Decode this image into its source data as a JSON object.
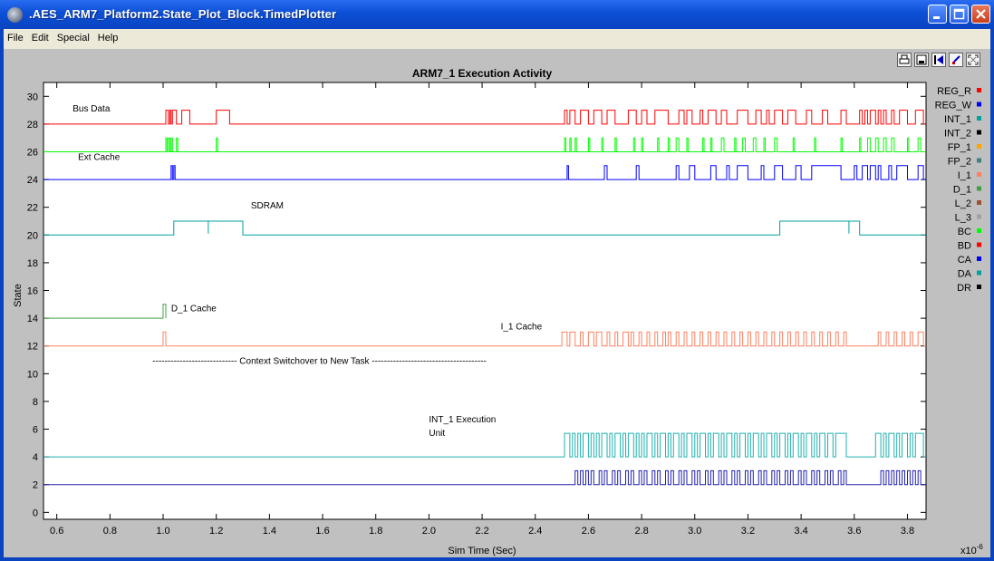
{
  "window": {
    "title": ".AES_ARM7_Platform2.State_Plot_Block.TimedPlotter"
  },
  "menu": [
    "File",
    "Edit",
    "Special",
    "Help"
  ],
  "toolbar": [
    "print-icon",
    "save-icon",
    "rewind-icon",
    "marker-icon",
    "fit-icon"
  ],
  "chart_data": {
    "type": "line",
    "title": "ARM7_1 Execution Activity",
    "xlabel": "Sim Time (Sec)",
    "ylabel": "State",
    "x_scale_label": "x10",
    "x_scale_exp": "-6",
    "xlim": [
      0.55,
      3.87
    ],
    "ylim": [
      -0.5,
      31
    ],
    "xticks": [
      "0.6",
      "0.8",
      "1.0",
      "1.2",
      "1.4",
      "1.6",
      "1.8",
      "2.0",
      "2.2",
      "2.4",
      "2.6",
      "2.8",
      "3.0",
      "3.2",
      "3.4",
      "3.6",
      "3.8"
    ],
    "yticks": [
      "0",
      "2",
      "4",
      "6",
      "8",
      "10",
      "12",
      "14",
      "16",
      "18",
      "20",
      "22",
      "24",
      "26",
      "28",
      "30"
    ],
    "legend": [
      {
        "name": "REG_R",
        "color": "#ff0000"
      },
      {
        "name": "REG_W",
        "color": "#0000ff"
      },
      {
        "name": "INT_1",
        "color": "#00a0a0"
      },
      {
        "name": "INT_2",
        "color": "#000000"
      },
      {
        "name": "FP_1",
        "color": "#ffa500"
      },
      {
        "name": "FP_2",
        "color": "#408080"
      },
      {
        "name": "I_1",
        "color": "#ff8060"
      },
      {
        "name": "D_1",
        "color": "#40a040"
      },
      {
        "name": "L_2",
        "color": "#a05030"
      },
      {
        "name": "L_3",
        "color": "#a0a0a0"
      },
      {
        "name": "BC",
        "color": "#00ff00"
      },
      {
        "name": "BD",
        "color": "#ff0000"
      },
      {
        "name": "CA",
        "color": "#0000ff"
      },
      {
        "name": "DA",
        "color": "#00a0a0"
      },
      {
        "name": "DR",
        "color": "#000000"
      }
    ],
    "annotations": [
      {
        "text": "Bus Data",
        "x": 0.66,
        "y": 28.9
      },
      {
        "text": "Ext Cache",
        "x": 0.68,
        "y": 25.4
      },
      {
        "text": "SDRAM",
        "x": 1.33,
        "y": 21.9
      },
      {
        "text": "D_1 Cache",
        "x": 1.03,
        "y": 14.5
      },
      {
        "text": "I_1 Cache",
        "x": 2.27,
        "y": 13.2
      },
      {
        "text": "---------------------------- Context Switchover to New Task --------------------------------------",
        "x": 0.96,
        "y": 10.7
      },
      {
        "text": "INT_1 Execution",
        "x": 2.0,
        "y": 6.5
      },
      {
        "text": "Unit",
        "x": 2.0,
        "y": 5.5
      }
    ],
    "series": [
      {
        "name": "BD",
        "color": "#ff0000",
        "base": 28,
        "amp": 1,
        "pulses": [
          [
            1.01,
            1.02
          ],
          [
            1.025,
            1.03
          ],
          [
            1.035,
            1.05
          ],
          [
            1.07,
            1.1
          ],
          [
            1.2,
            1.25
          ],
          [
            2.51,
            2.52
          ],
          [
            2.53,
            2.55
          ],
          [
            2.57,
            2.6
          ],
          [
            2.62,
            2.65
          ],
          [
            2.67,
            2.7
          ],
          [
            2.75,
            2.78
          ],
          [
            2.8,
            2.82
          ],
          [
            2.85,
            2.9
          ],
          [
            2.94,
            2.96
          ],
          [
            2.97,
            2.99
          ],
          [
            3.02,
            3.03
          ],
          [
            3.05,
            3.08
          ],
          [
            3.1,
            3.12
          ],
          [
            3.16,
            3.2
          ],
          [
            3.23,
            3.25
          ],
          [
            3.27,
            3.28
          ],
          [
            3.3,
            3.33
          ],
          [
            3.35,
            3.38
          ],
          [
            3.42,
            3.44
          ],
          [
            3.48,
            3.5
          ],
          [
            3.55,
            3.57
          ],
          [
            3.62,
            3.63
          ],
          [
            3.64,
            3.65
          ],
          [
            3.66,
            3.68
          ],
          [
            3.69,
            3.7
          ],
          [
            3.71,
            3.72
          ],
          [
            3.74,
            3.75
          ],
          [
            3.77,
            3.8
          ],
          [
            3.83,
            3.86
          ]
        ]
      },
      {
        "name": "BC",
        "color": "#00ff00",
        "base": 26,
        "amp": 1,
        "pulses": [
          [
            1.01,
            1.015
          ],
          [
            1.02,
            1.025
          ],
          [
            1.03,
            1.035
          ],
          [
            1.05,
            1.055
          ],
          [
            1.2,
            1.205
          ],
          [
            2.51,
            2.515
          ],
          [
            2.53,
            2.535
          ],
          [
            2.55,
            2.555
          ],
          [
            2.6,
            2.605
          ],
          [
            2.65,
            2.655
          ],
          [
            2.7,
            2.705
          ],
          [
            2.77,
            2.775
          ],
          [
            2.8,
            2.805
          ],
          [
            2.86,
            2.865
          ],
          [
            2.9,
            2.905
          ],
          [
            2.93,
            2.94
          ],
          [
            2.97,
            2.975
          ],
          [
            3.03,
            3.035
          ],
          [
            3.06,
            3.065
          ],
          [
            3.1,
            3.11
          ],
          [
            3.15,
            3.155
          ],
          [
            3.18,
            3.19
          ],
          [
            3.22,
            3.23
          ],
          [
            3.26,
            3.265
          ],
          [
            3.3,
            3.31
          ],
          [
            3.37,
            3.375
          ],
          [
            3.45,
            3.455
          ],
          [
            3.55,
            3.555
          ],
          [
            3.62,
            3.625
          ],
          [
            3.65,
            3.66
          ],
          [
            3.68,
            3.69
          ],
          [
            3.71,
            3.72
          ],
          [
            3.74,
            3.75
          ],
          [
            3.8,
            3.805
          ],
          [
            3.84,
            3.85
          ]
        ]
      },
      {
        "name": "CA",
        "color": "#0000ff",
        "base": 24,
        "amp": 1,
        "pulses": [
          [
            1.03,
            1.035
          ],
          [
            1.04,
            1.045
          ],
          [
            2.52,
            2.525
          ],
          [
            2.66,
            2.67
          ],
          [
            2.78,
            2.79
          ],
          [
            2.93,
            2.94
          ],
          [
            2.98,
            3.0
          ],
          [
            3.06,
            3.08
          ],
          [
            3.12,
            3.13
          ],
          [
            3.16,
            3.2
          ],
          [
            3.25,
            3.26
          ],
          [
            3.3,
            3.33
          ],
          [
            3.38,
            3.4
          ],
          [
            3.44,
            3.55
          ],
          [
            3.6,
            3.61
          ],
          [
            3.63,
            3.65
          ],
          [
            3.66,
            3.68
          ],
          [
            3.69,
            3.7
          ],
          [
            3.73,
            3.74
          ],
          [
            3.76,
            3.8
          ],
          [
            3.84,
            3.86
          ]
        ]
      },
      {
        "name": "DA",
        "color": "#00a0a0",
        "base": 20,
        "amp": 1,
        "pulses": [
          [
            1.04,
            1.3
          ],
          [
            3.32,
            3.62
          ]
        ],
        "spikes": [
          1.17,
          3.58
        ]
      },
      {
        "name": "D_1",
        "color": "#40a040",
        "base": 14,
        "amp": 1,
        "start": 0.55,
        "end": 1.01,
        "pulses": [
          [
            1.0,
            1.01
          ]
        ]
      },
      {
        "name": "I_1",
        "color": "#ff8060",
        "base": 12,
        "amp": 1,
        "pulses": [
          [
            1.0,
            1.01
          ],
          [
            2.5,
            2.52
          ],
          [
            2.53,
            2.55
          ],
          [
            2.57,
            2.58
          ],
          [
            2.6,
            2.62
          ],
          [
            2.63,
            2.65
          ],
          [
            2.67,
            2.68
          ],
          [
            2.7,
            2.71
          ],
          [
            2.73,
            2.75
          ],
          [
            2.76,
            2.77
          ],
          [
            2.79,
            2.8
          ],
          [
            2.82,
            2.83
          ],
          [
            2.85,
            2.86
          ],
          [
            2.88,
            2.89
          ],
          [
            2.9,
            2.91
          ],
          [
            2.93,
            2.94
          ],
          [
            2.96,
            2.97
          ],
          [
            2.99,
            3.0
          ],
          [
            3.02,
            3.03
          ],
          [
            3.05,
            3.06
          ],
          [
            3.08,
            3.09
          ],
          [
            3.11,
            3.12
          ],
          [
            3.14,
            3.15
          ],
          [
            3.17,
            3.18
          ],
          [
            3.2,
            3.21
          ],
          [
            3.23,
            3.24
          ],
          [
            3.26,
            3.27
          ],
          [
            3.29,
            3.3
          ],
          [
            3.32,
            3.33
          ],
          [
            3.35,
            3.36
          ],
          [
            3.38,
            3.39
          ],
          [
            3.41,
            3.42
          ],
          [
            3.44,
            3.45
          ],
          [
            3.47,
            3.48
          ],
          [
            3.5,
            3.51
          ],
          [
            3.53,
            3.54
          ],
          [
            3.56,
            3.57
          ],
          [
            3.69,
            3.7
          ],
          [
            3.72,
            3.73
          ],
          [
            3.75,
            3.76
          ],
          [
            3.78,
            3.79
          ],
          [
            3.81,
            3.82
          ],
          [
            3.84,
            3.86
          ]
        ]
      },
      {
        "name": "INT_1",
        "color": "#20b0b0",
        "base": 4,
        "amp": 1.7,
        "pulses": [
          [
            2.51,
            2.53
          ],
          [
            2.54,
            2.55
          ],
          [
            2.56,
            2.57
          ],
          [
            2.58,
            2.6
          ],
          [
            2.61,
            2.62
          ],
          [
            2.63,
            2.64
          ],
          [
            2.65,
            2.67
          ],
          [
            2.68,
            2.69
          ],
          [
            2.7,
            2.72
          ],
          [
            2.73,
            2.74
          ],
          [
            2.75,
            2.77
          ],
          [
            2.78,
            2.79
          ],
          [
            2.8,
            2.81
          ],
          [
            2.82,
            2.84
          ],
          [
            2.85,
            2.86
          ],
          [
            2.87,
            2.89
          ],
          [
            2.9,
            2.91
          ],
          [
            2.92,
            2.94
          ],
          [
            2.95,
            2.96
          ],
          [
            2.97,
            2.99
          ],
          [
            3.0,
            3.01
          ],
          [
            3.02,
            3.04
          ],
          [
            3.05,
            3.06
          ],
          [
            3.07,
            3.09
          ],
          [
            3.1,
            3.11
          ],
          [
            3.12,
            3.14
          ],
          [
            3.15,
            3.16
          ],
          [
            3.17,
            3.19
          ],
          [
            3.2,
            3.21
          ],
          [
            3.22,
            3.24
          ],
          [
            3.25,
            3.26
          ],
          [
            3.27,
            3.29
          ],
          [
            3.3,
            3.31
          ],
          [
            3.32,
            3.34
          ],
          [
            3.35,
            3.36
          ],
          [
            3.37,
            3.39
          ],
          [
            3.4,
            3.41
          ],
          [
            3.42,
            3.44
          ],
          [
            3.45,
            3.46
          ],
          [
            3.47,
            3.49
          ],
          [
            3.5,
            3.52
          ],
          [
            3.53,
            3.57
          ],
          [
            3.68,
            3.7
          ],
          [
            3.71,
            3.72
          ],
          [
            3.73,
            3.75
          ],
          [
            3.76,
            3.77
          ],
          [
            3.78,
            3.8
          ],
          [
            3.81,
            3.82
          ],
          [
            3.83,
            3.86
          ]
        ]
      },
      {
        "name": "INT_2",
        "color": "#2020b0",
        "base": 2,
        "amp": 1,
        "pulses": [
          [
            2.55,
            2.56
          ],
          [
            2.57,
            2.58
          ],
          [
            2.59,
            2.6
          ],
          [
            2.61,
            2.62
          ],
          [
            2.64,
            2.65
          ],
          [
            2.66,
            2.67
          ],
          [
            2.69,
            2.7
          ],
          [
            2.71,
            2.72
          ],
          [
            2.74,
            2.75
          ],
          [
            2.76,
            2.77
          ],
          [
            2.79,
            2.8
          ],
          [
            2.81,
            2.82
          ],
          [
            2.84,
            2.85
          ],
          [
            2.86,
            2.87
          ],
          [
            2.89,
            2.9
          ],
          [
            2.91,
            2.92
          ],
          [
            2.94,
            2.95
          ],
          [
            2.96,
            2.97
          ],
          [
            2.99,
            3.0
          ],
          [
            3.01,
            3.02
          ],
          [
            3.04,
            3.05
          ],
          [
            3.06,
            3.07
          ],
          [
            3.09,
            3.1
          ],
          [
            3.11,
            3.12
          ],
          [
            3.14,
            3.15
          ],
          [
            3.16,
            3.17
          ],
          [
            3.19,
            3.2
          ],
          [
            3.21,
            3.22
          ],
          [
            3.24,
            3.25
          ],
          [
            3.26,
            3.27
          ],
          [
            3.29,
            3.3
          ],
          [
            3.31,
            3.32
          ],
          [
            3.34,
            3.35
          ],
          [
            3.36,
            3.37
          ],
          [
            3.39,
            3.4
          ],
          [
            3.41,
            3.42
          ],
          [
            3.44,
            3.45
          ],
          [
            3.46,
            3.47
          ],
          [
            3.49,
            3.5
          ],
          [
            3.51,
            3.52
          ],
          [
            3.54,
            3.55
          ],
          [
            3.56,
            3.57
          ],
          [
            3.7,
            3.71
          ],
          [
            3.72,
            3.73
          ],
          [
            3.74,
            3.75
          ],
          [
            3.76,
            3.77
          ],
          [
            3.78,
            3.79
          ],
          [
            3.8,
            3.81
          ],
          [
            3.82,
            3.83
          ],
          [
            3.84,
            3.85
          ]
        ]
      }
    ]
  }
}
